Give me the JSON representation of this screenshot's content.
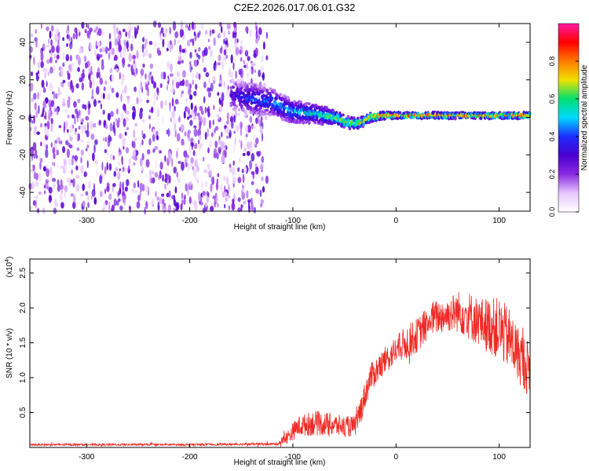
{
  "title": "C2E2.2026.017.06.01.G32",
  "colors": {
    "snr_line": "#ee2a24",
    "axis": "#000000",
    "colormap": [
      "#ffffff",
      "#e8c8ff",
      "#8a2be2",
      "#4b00d0",
      "#1c2cff",
      "#00d8ff",
      "#00e070",
      "#f0e000",
      "#ff7a00",
      "#ff0000",
      "#ff1aa0"
    ]
  },
  "chart_data": [
    {
      "type": "heatmap",
      "name": "spectrogram",
      "xlabel": "Height of straight line (km)",
      "ylabel": "Frequency (Hz)",
      "xlim": [
        -355,
        130
      ],
      "ylim": [
        -50,
        50
      ],
      "xticks": [
        -300,
        -200,
        -100,
        0,
        100
      ],
      "xtick_labels": [
        "-300",
        "-200",
        "-100",
        "0",
        "100"
      ],
      "yticks": [
        -40,
        -20,
        0,
        20,
        40
      ],
      "ytick_labels": [
        "-40",
        "-20",
        "0",
        "20",
        "40"
      ],
      "colorbar": {
        "label": "Normalized spectral amplitude",
        "range": [
          0,
          1
        ],
        "ticks": [
          0.0,
          0.2,
          0.4,
          0.6,
          0.8
        ],
        "tick_labels": [
          "0.0",
          "0.2",
          "0.4",
          "0.6",
          "0.8"
        ]
      },
      "noise_region_x": [
        -355,
        -125
      ],
      "ridge": {
        "x": [
          -160,
          -140,
          -120,
          -100,
          -80,
          -60,
          -45,
          -35,
          -25,
          -15,
          0,
          20,
          40,
          60,
          80,
          100,
          130
        ],
        "freq": [
          12,
          10,
          8,
          3,
          2,
          0,
          -3,
          -3,
          0,
          1,
          1,
          1,
          1,
          1,
          1,
          1,
          1
        ],
        "spread": [
          8,
          8,
          7,
          6,
          5,
          4,
          3,
          3,
          2.5,
          2,
          1.5,
          1.5,
          1.5,
          1.5,
          1.5,
          1.5,
          1.5
        ],
        "amplitude": [
          0.35,
          0.45,
          0.5,
          0.55,
          0.6,
          0.7,
          0.75,
          0.8,
          0.85,
          0.9,
          0.95,
          0.95,
          0.95,
          0.9,
          0.95,
          0.95,
          0.95
        ]
      }
    },
    {
      "type": "line",
      "name": "snr",
      "xlabel": "Height of straight line (km)",
      "ylabel": "SNR (10 * v/v)",
      "y_multiplier_label": "(x10",
      "y_multiplier_exp": "4",
      "xlim": [
        -355,
        130
      ],
      "ylim": [
        0,
        2.7
      ],
      "xticks": [
        -300,
        -200,
        -100,
        0,
        100
      ],
      "xtick_labels": [
        "-300",
        "-200",
        "-100",
        "0",
        "100"
      ],
      "yticks": [
        0.5,
        1.0,
        1.5,
        2.0,
        2.5
      ],
      "ytick_labels": [
        "0.5",
        "1.0",
        "1.5",
        "2.0",
        "2.5"
      ],
      "envelope": {
        "x": [
          -355,
          -300,
          -200,
          -115,
          -105,
          -95,
          -80,
          -65,
          -50,
          -40,
          -35,
          -25,
          -10,
          0,
          10,
          20,
          35,
          50,
          60,
          70,
          80,
          90,
          100,
          110,
          120,
          130
        ],
        "mean": [
          0.04,
          0.04,
          0.04,
          0.05,
          0.15,
          0.3,
          0.35,
          0.33,
          0.3,
          0.3,
          0.5,
          1.0,
          1.25,
          1.4,
          1.5,
          1.6,
          1.85,
          1.9,
          1.95,
          1.9,
          1.8,
          1.75,
          1.7,
          1.55,
          1.3,
          1.1
        ],
        "noise": [
          0.015,
          0.015,
          0.015,
          0.02,
          0.1,
          0.15,
          0.18,
          0.17,
          0.15,
          0.15,
          0.2,
          0.2,
          0.2,
          0.2,
          0.25,
          0.25,
          0.25,
          0.25,
          0.3,
          0.35,
          0.35,
          0.4,
          0.45,
          0.45,
          0.4,
          0.4
        ]
      }
    }
  ]
}
